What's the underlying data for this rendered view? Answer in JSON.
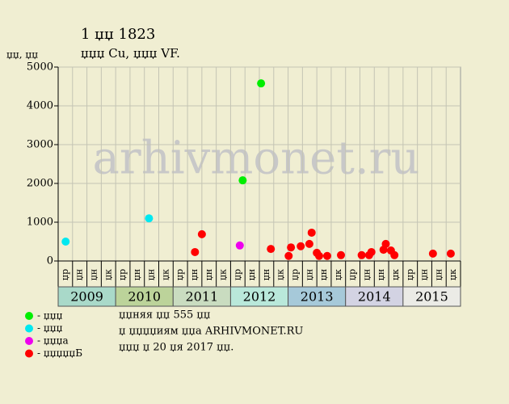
{
  "chart_data": {
    "type": "scatter",
    "title": "1 џџ 1823",
    "subtitle": "џџџ Cu, џџџ VF.",
    "y_label": "џџ, џџ",
    "watermark": "arhivmonet.ru",
    "xlim": [
      2009,
      2016
    ],
    "ylim": [
      0,
      5000
    ],
    "yticks": [
      0,
      1000,
      2000,
      3000,
      4000,
      5000
    ],
    "grid": true,
    "years": [
      {
        "label": "2009",
        "color": "#a9d9c9"
      },
      {
        "label": "2010",
        "color": "#bcd39a"
      },
      {
        "label": "2011",
        "color": "#c9dcc0"
      },
      {
        "label": "2012",
        "color": "#b9e8da"
      },
      {
        "label": "2013",
        "color": "#a6c9d9"
      },
      {
        "label": "2014",
        "color": "#d3d3e3"
      },
      {
        "label": "2015",
        "color": "#ebebe6"
      }
    ],
    "quarters": [
      "џр",
      "џн",
      "џн",
      "џк",
      "џр",
      "џн",
      "џн",
      "џк",
      "џр",
      "џн",
      "џн",
      "џк",
      "џр",
      "џн",
      "џн",
      "џк",
      "џр",
      "џн",
      "џн",
      "џк",
      "џр",
      "џн",
      "џн",
      "џк",
      "џр",
      "џн",
      "џн",
      "џк"
    ],
    "series": [
      {
        "name": "- џџџ",
        "color": "#00ee00",
        "x": [
          2012.21,
          2012.53
        ],
        "values": [
          2080,
          4580
        ]
      },
      {
        "name": "- џџџ",
        "color": "#00e8f0",
        "x": [
          2009.13,
          2010.58
        ],
        "values": [
          500,
          1100
        ]
      },
      {
        "name": "- џџџа",
        "color": "#ee00ee",
        "x": [
          2012.16
        ],
        "values": [
          400
        ]
      },
      {
        "name": "- џџџџџБ",
        "color": "#ff0000",
        "x": [
          2011.38,
          2011.5,
          2012.7,
          2013.01,
          2013.05,
          2013.22,
          2013.37,
          2013.41,
          2013.5,
          2013.54,
          2013.68,
          2013.92,
          2014.28,
          2014.41,
          2014.45,
          2014.66,
          2014.7,
          2014.79,
          2014.85,
          2015.52,
          2015.83
        ],
        "values": [
          230,
          690,
          310,
          130,
          350,
          380,
          440,
          730,
          210,
          130,
          130,
          150,
          150,
          150,
          230,
          290,
          440,
          270,
          150,
          190,
          190
        ]
      }
    ],
    "notes": [
      "џџняя џџ 555 џџ",
      "џ џџџџиям џџа ARHIVMONET.RU",
      "џџџ џ 20 џя 2017 џџ."
    ]
  }
}
